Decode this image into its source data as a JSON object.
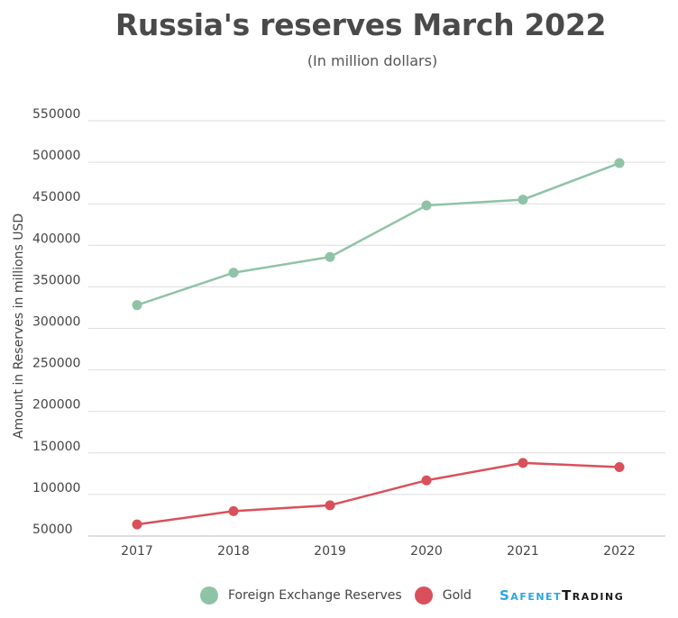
{
  "header": {
    "title": "Russia's reserves March 2022",
    "subtitle": "(In million dollars)"
  },
  "chart_data": {
    "type": "line",
    "title": "Russia's reserves March 2022",
    "subtitle": "(In million dollars)",
    "xlabel": "",
    "ylabel": "Amount in Reserves in millions USD",
    "ylim": [
      50000,
      550000
    ],
    "yticks": [
      "550000",
      "500000",
      "450000",
      "400000",
      "350000",
      "300000",
      "250000",
      "200000",
      "150000",
      "100000",
      "50000"
    ],
    "categories": [
      "2017",
      "2018",
      "2019",
      "2020",
      "2021",
      "2022"
    ],
    "grid": true,
    "legend_position": "bottom",
    "series": [
      {
        "name": "Foreign Exchange Reserves",
        "color": "#8fc3a7",
        "values": [
          328000,
          367000,
          386000,
          448000,
          455000,
          499000
        ]
      },
      {
        "name": "Gold",
        "color": "#d9505a",
        "values": [
          64000,
          80000,
          87000,
          117000,
          138000,
          133000
        ]
      }
    ]
  },
  "brand": {
    "part1": "Safenet",
    "part2": "Trading"
  }
}
